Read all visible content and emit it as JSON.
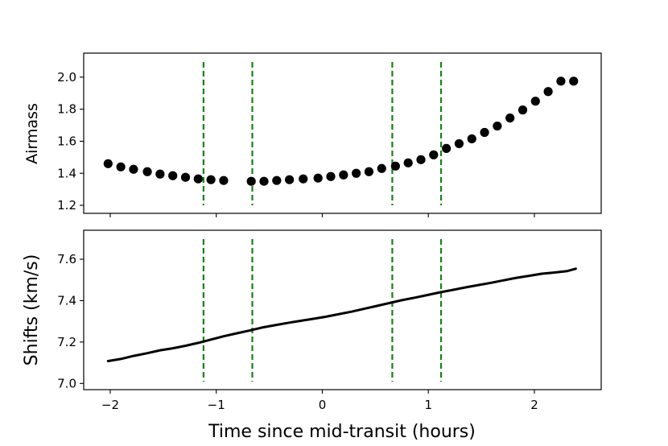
{
  "colors": {
    "points": "#000000",
    "line": "#000000",
    "markers": "#1a7f1a",
    "axes": "#000000"
  },
  "xaxis": {
    "label": "Time since mid-transit (hours)",
    "ticks": [
      -2,
      -1,
      0,
      1,
      2
    ],
    "tick_labels": [
      "−2",
      "−1",
      "0",
      "1",
      "2"
    ],
    "lim": [
      -2.25,
      2.63
    ]
  },
  "chart_data": [
    {
      "type": "scatter",
      "ylabel": "Airmass",
      "xlim": [
        -2.25,
        2.63
      ],
      "ylim": [
        1.15,
        2.15
      ],
      "yticks": [
        1.2,
        1.4,
        1.6,
        1.8,
        2.0
      ],
      "ytick_labels": [
        "1.2",
        "1.4",
        "1.6",
        "1.8",
        "2.0"
      ],
      "vlines": [
        -1.12,
        -0.66,
        0.66,
        1.12
      ],
      "series": [
        {
          "x": [
            -2.02,
            -1.9,
            -1.78,
            -1.65,
            -1.53,
            -1.41,
            -1.29,
            -1.17,
            -1.05,
            -0.93,
            -0.67,
            -0.55,
            -0.43,
            -0.31,
            -0.18,
            -0.04,
            0.08,
            0.2,
            0.32,
            0.44,
            0.56,
            0.69,
            0.81,
            0.93,
            1.05,
            1.17,
            1.29,
            1.41,
            1.53,
            1.65,
            1.77,
            1.89,
            2.01,
            2.13,
            2.25,
            2.37
          ],
          "y": [
            1.46,
            1.44,
            1.425,
            1.41,
            1.395,
            1.385,
            1.375,
            1.365,
            1.36,
            1.355,
            1.35,
            1.35,
            1.355,
            1.36,
            1.365,
            1.37,
            1.38,
            1.39,
            1.4,
            1.41,
            1.43,
            1.445,
            1.465,
            1.485,
            1.515,
            1.555,
            1.585,
            1.615,
            1.655,
            1.695,
            1.745,
            1.795,
            1.85,
            1.91,
            1.975,
            1.975
          ]
        }
      ]
    },
    {
      "type": "line",
      "ylabel": "Shifts (km/s)",
      "xlim": [
        -2.25,
        2.63
      ],
      "ylim": [
        6.97,
        7.74
      ],
      "yticks": [
        7.0,
        7.2,
        7.4,
        7.6
      ],
      "ytick_labels": [
        "7.0",
        "7.2",
        "7.4",
        "7.6"
      ],
      "vlines": [
        -1.12,
        -0.66,
        0.66,
        1.12
      ],
      "series": [
        {
          "x": [
            -2.02,
            -1.9,
            -1.78,
            -1.65,
            -1.53,
            -1.41,
            -1.29,
            -1.17,
            -1.05,
            -0.93,
            -0.81,
            -0.69,
            -0.57,
            -0.45,
            -0.33,
            -0.21,
            -0.09,
            0.03,
            0.15,
            0.27,
            0.39,
            0.51,
            0.63,
            0.75,
            0.87,
            0.99,
            1.11,
            1.23,
            1.35,
            1.47,
            1.59,
            1.71,
            1.83,
            1.95,
            2.07,
            2.19,
            2.31,
            2.39
          ],
          "y": [
            7.108,
            7.118,
            7.133,
            7.146,
            7.16,
            7.17,
            7.182,
            7.196,
            7.212,
            7.228,
            7.242,
            7.255,
            7.27,
            7.281,
            7.292,
            7.302,
            7.312,
            7.322,
            7.334,
            7.346,
            7.36,
            7.374,
            7.388,
            7.402,
            7.414,
            7.427,
            7.44,
            7.452,
            7.464,
            7.475,
            7.486,
            7.498,
            7.51,
            7.52,
            7.53,
            7.536,
            7.543,
            7.554
          ]
        }
      ]
    }
  ]
}
